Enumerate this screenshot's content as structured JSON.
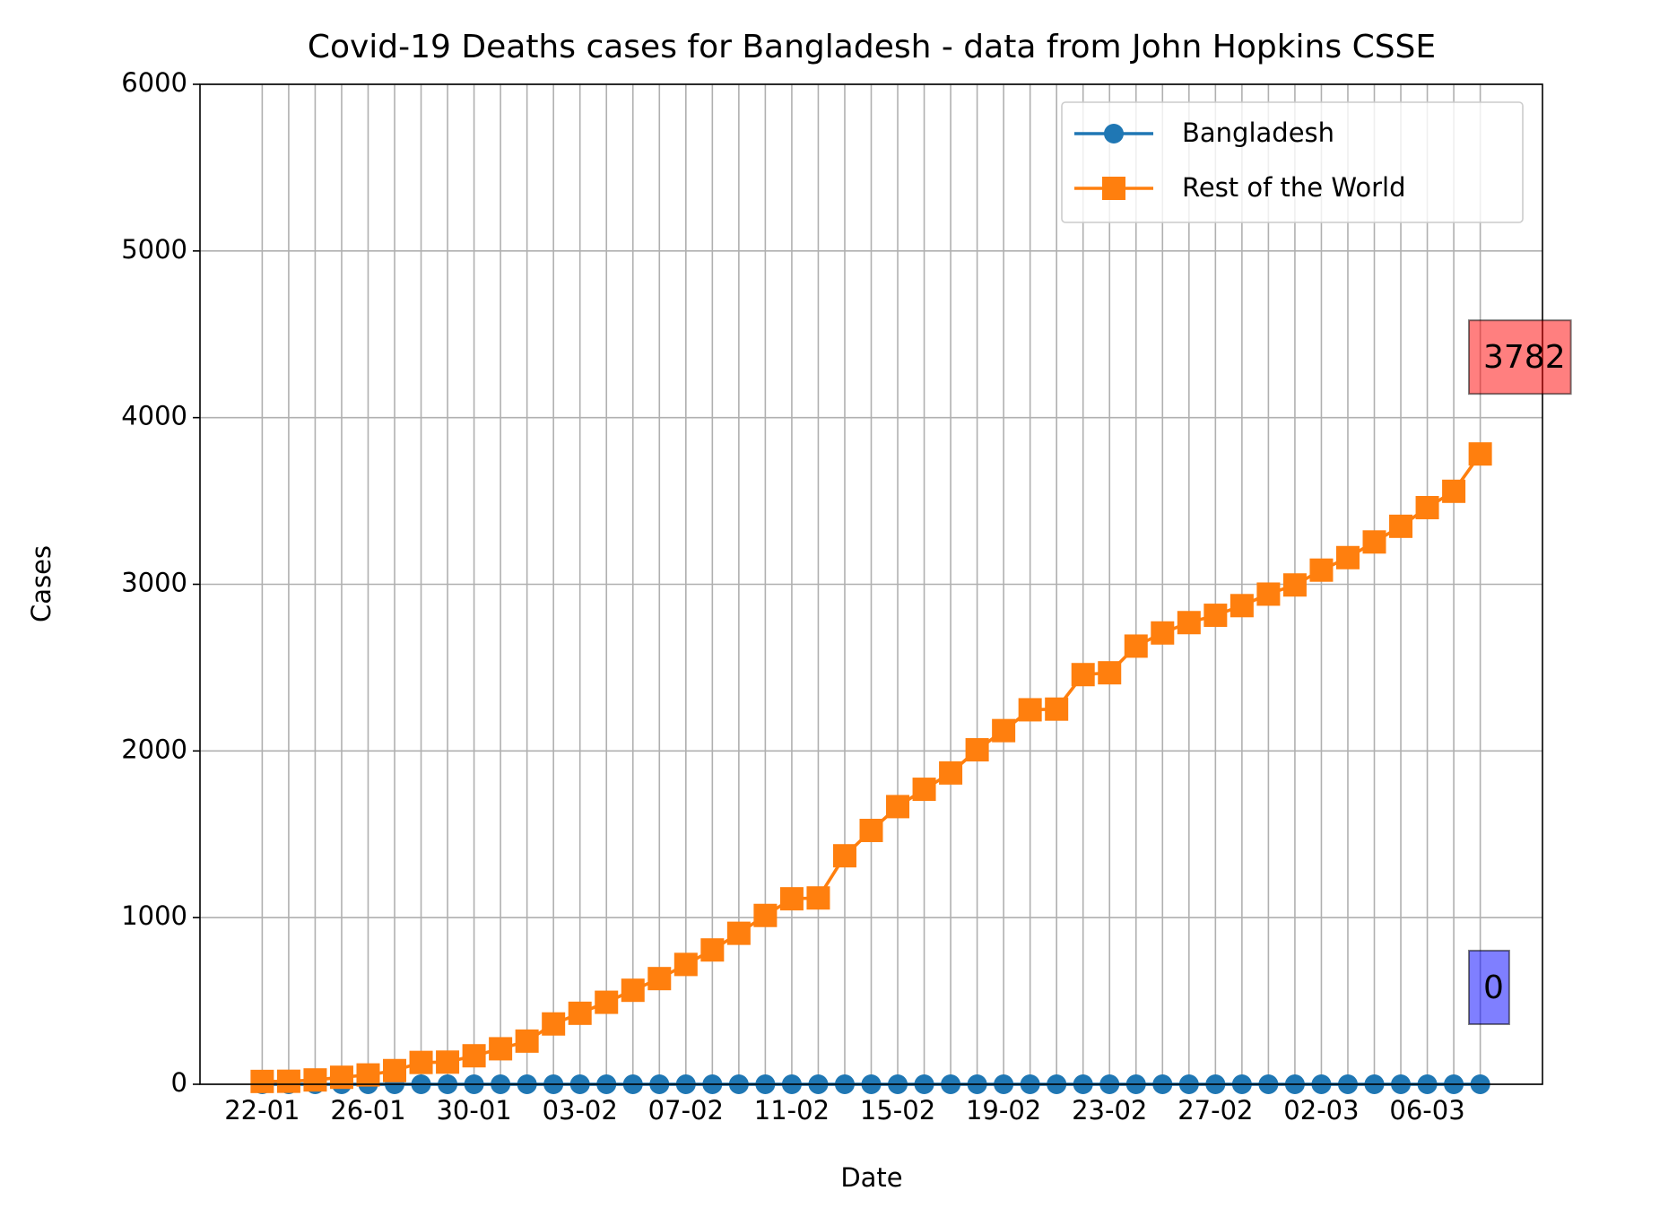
{
  "chart_data": {
    "type": "line",
    "title": "Covid-19 Deaths cases for Bangladesh - data from John Hopkins CSSE",
    "x_label": "Date",
    "y_label": "Cases",
    "categories": [
      "22-01",
      null,
      null,
      null,
      "26-01",
      null,
      null,
      null,
      "30-01",
      null,
      null,
      null,
      "03-02",
      null,
      null,
      null,
      "07-02",
      null,
      null,
      null,
      "11-02",
      null,
      null,
      null,
      "15-02",
      null,
      null,
      null,
      "19-02",
      null,
      null,
      null,
      "23-02",
      null,
      null,
      null,
      "27-02",
      null,
      null,
      null,
      "02-03",
      null,
      null,
      null,
      "06-03",
      null,
      null
    ],
    "series": [
      {
        "name": "Bangladesh",
        "color": "#1f77b4",
        "marker": "circle",
        "label_color": "#0000ff",
        "values": [
          0,
          0,
          0,
          0,
          0,
          0,
          0,
          0,
          0,
          0,
          0,
          0,
          0,
          0,
          0,
          0,
          0,
          0,
          0,
          0,
          0,
          0,
          0,
          0,
          0,
          0,
          0,
          0,
          0,
          0,
          0,
          0,
          0,
          0,
          0,
          0,
          0,
          0,
          0,
          0,
          0,
          0,
          0,
          0,
          0,
          0,
          0
        ]
      },
      {
        "name": "Rest of the World",
        "color": "#ff7f0e",
        "marker": "square",
        "label_color": "#ff0000",
        "values": [
          17,
          18,
          26,
          42,
          56,
          82,
          131,
          133,
          171,
          213,
          259,
          362,
          426,
          492,
          564,
          634,
          719,
          806,
          906,
          1013,
          1113,
          1118,
          1371,
          1523,
          1666,
          1770,
          1868,
          2007,
          2122,
          2247,
          2251,
          2458,
          2469,
          2629,
          2708,
          2770,
          2814,
          2872,
          2941,
          2996,
          3085,
          3160,
          3254,
          3348,
          3460,
          3558,
          3782
        ]
      }
    ],
    "ylim": [
      0,
      6000
    ],
    "yticks": [
      0,
      1000,
      2000,
      3000,
      4000,
      5000,
      6000
    ],
    "grid": true,
    "legend": "upper right"
  }
}
